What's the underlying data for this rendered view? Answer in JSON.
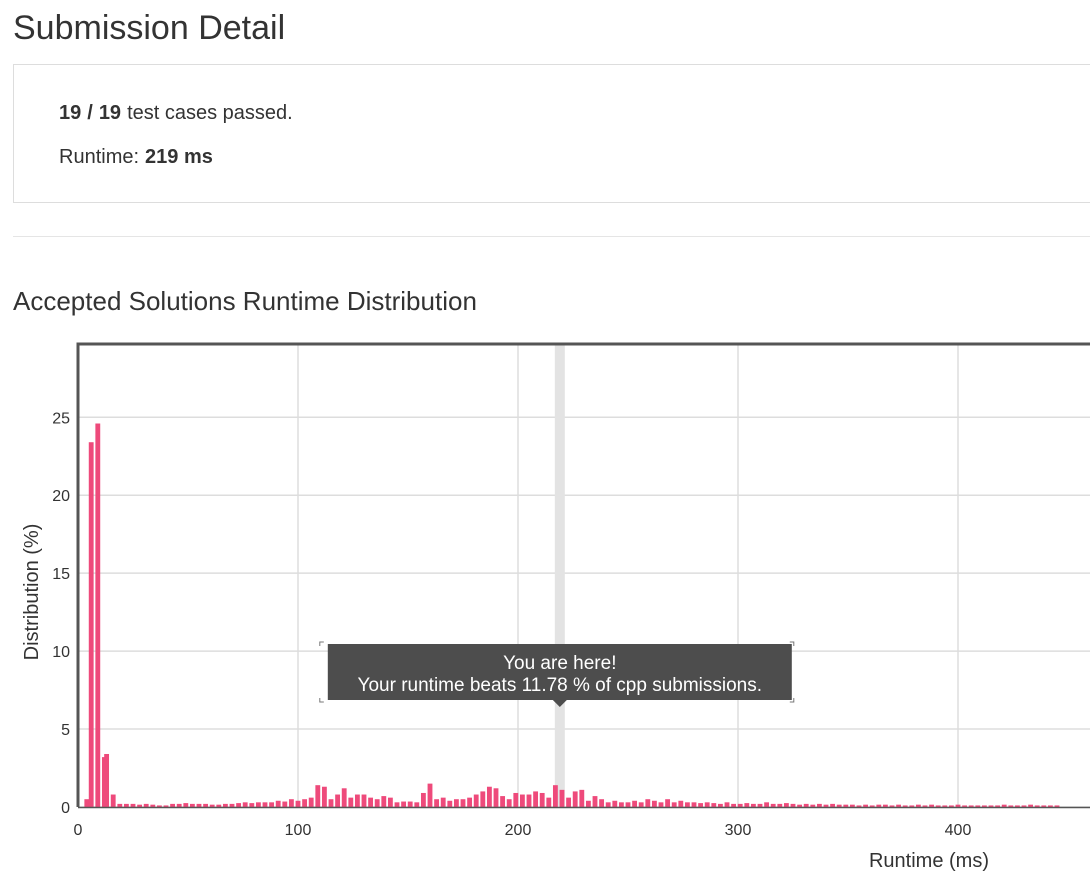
{
  "header": {
    "title": "Submission Detail"
  },
  "summary": {
    "passed": 19,
    "separator": "/",
    "total": 19,
    "passed_text": "test cases passed.",
    "runtime_label": "Runtime:",
    "runtime": "219 ms"
  },
  "chart_data": {
    "type": "bar",
    "title": "Accepted Solutions Runtime Distribution",
    "x_label": "Runtime (ms)",
    "y_label": "Distribution (%)",
    "color": "#ee4a7b",
    "grid": true,
    "xlim": [
      0,
      460
    ],
    "ylim": [
      0,
      29.7
    ],
    "xticks": [
      0,
      100,
      200,
      300,
      400
    ],
    "yticks": [
      0,
      5,
      10,
      15,
      20,
      25
    ],
    "highlight": 219,
    "annotation": {
      "title": "You are here!",
      "text": "Your runtime beats 11.78 % of cpp submissions."
    },
    "x": [
      4,
      6,
      9,
      12,
      13,
      16,
      19,
      22,
      25,
      28,
      31,
      34,
      37,
      40,
      43,
      46,
      49,
      52,
      55,
      58,
      61,
      64,
      67,
      70,
      73,
      76,
      79,
      82,
      85,
      88,
      91,
      94,
      97,
      100,
      103,
      106,
      109,
      112,
      115,
      118,
      121,
      124,
      127,
      130,
      133,
      136,
      139,
      142,
      145,
      148,
      151,
      154,
      157,
      160,
      163,
      166,
      169,
      172,
      175,
      178,
      181,
      184,
      187,
      190,
      193,
      196,
      199,
      202,
      205,
      208,
      211,
      214,
      217,
      220,
      223,
      226,
      229,
      232,
      235,
      238,
      241,
      244,
      247,
      250,
      253,
      256,
      259,
      262,
      265,
      268,
      271,
      274,
      277,
      280,
      283,
      286,
      289,
      292,
      295,
      298,
      301,
      304,
      307,
      310,
      313,
      316,
      319,
      322,
      325,
      328,
      331,
      334,
      337,
      340,
      343,
      346,
      349,
      352,
      355,
      358,
      361,
      364,
      367,
      370,
      373,
      376,
      379,
      382,
      385,
      388,
      391,
      394,
      397,
      400,
      403,
      406,
      409,
      412,
      415,
      418,
      421,
      424,
      427,
      430,
      433,
      436,
      439,
      442,
      445
    ],
    "values": [
      0.5,
      23.4,
      24.6,
      3.2,
      3.4,
      0.8,
      0.2,
      0.2,
      0.2,
      0.15,
      0.2,
      0.15,
      0.1,
      0.1,
      0.2,
      0.2,
      0.25,
      0.2,
      0.2,
      0.2,
      0.15,
      0.15,
      0.2,
      0.2,
      0.25,
      0.3,
      0.25,
      0.3,
      0.3,
      0.3,
      0.4,
      0.35,
      0.5,
      0.4,
      0.5,
      0.6,
      1.4,
      1.3,
      0.5,
      0.8,
      1.2,
      0.6,
      0.8,
      0.8,
      0.6,
      0.5,
      0.7,
      0.6,
      0.3,
      0.35,
      0.35,
      0.3,
      0.9,
      1.5,
      0.5,
      0.6,
      0.4,
      0.5,
      0.5,
      0.6,
      0.8,
      1.0,
      1.3,
      1.2,
      0.7,
      0.5,
      0.9,
      0.8,
      0.8,
      1.0,
      0.9,
      0.6,
      1.4,
      1.1,
      0.6,
      1.0,
      1.1,
      0.4,
      0.7,
      0.5,
      0.3,
      0.4,
      0.3,
      0.3,
      0.4,
      0.3,
      0.5,
      0.4,
      0.3,
      0.5,
      0.3,
      0.4,
      0.3,
      0.3,
      0.25,
      0.3,
      0.25,
      0.2,
      0.3,
      0.2,
      0.2,
      0.25,
      0.2,
      0.2,
      0.3,
      0.2,
      0.2,
      0.25,
      0.2,
      0.15,
      0.2,
      0.15,
      0.2,
      0.15,
      0.2,
      0.15,
      0.15,
      0.15,
      0.1,
      0.15,
      0.1,
      0.15,
      0.15,
      0.1,
      0.15,
      0.1,
      0.1,
      0.15,
      0.1,
      0.15,
      0.1,
      0.1,
      0.1,
      0.15,
      0.1,
      0.1,
      0.1,
      0.1,
      0.1,
      0.1,
      0.15,
      0.1,
      0.1,
      0.1,
      0.15,
      0.1,
      0.1,
      0.1,
      0.1
    ]
  }
}
